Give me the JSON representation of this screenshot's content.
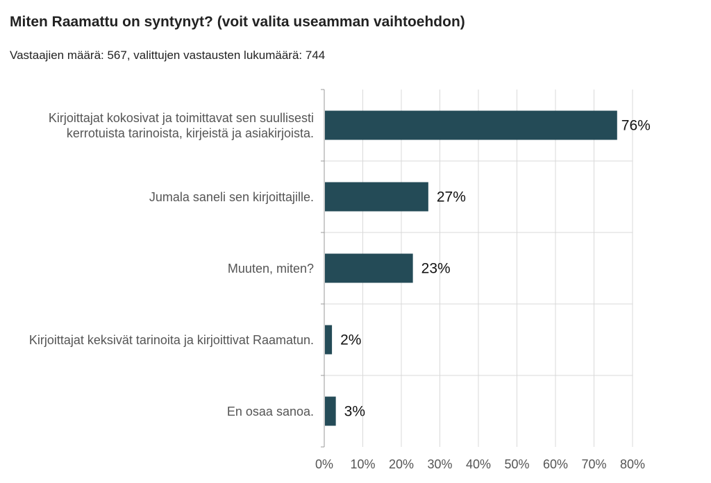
{
  "chart_data": {
    "type": "bar",
    "orientation": "horizontal",
    "title": "Miten Raamattu on syntynyt? (voit valita useamman vaihtoehdon)",
    "subtitle": "Vastaajien määrä: 567, valittujen vastausten lukumäärä: 744",
    "categories": [
      "Kirjoittajat kokosivat ja toimittavat sen suullisesti kerrotuista tarinoista, kirjeistä ja asiakirjoista.",
      "Jumala saneli sen kirjoittajille.",
      "Muuten, miten?",
      "Kirjoittajat keksivät tarinoita ja kirjoittivat Raamatun.",
      "En osaa sanoa."
    ],
    "values": [
      76,
      27,
      23,
      2,
      3
    ],
    "value_labels": [
      "76%",
      "27%",
      "23%",
      "2%",
      "3%"
    ],
    "xlim": [
      0,
      80
    ],
    "xticks": [
      "0%",
      "10%",
      "20%",
      "30%",
      "40%",
      "50%",
      "60%",
      "70%",
      "80%"
    ],
    "xlabel": "",
    "ylabel": "",
    "grid": true,
    "legend": "none",
    "colors": {
      "bar": "#244b57",
      "grid": "#d9d9d9",
      "axis": "#9a9a9a",
      "category_text": "#555555",
      "tick_text": "#555555",
      "value_text": "#111111"
    }
  }
}
